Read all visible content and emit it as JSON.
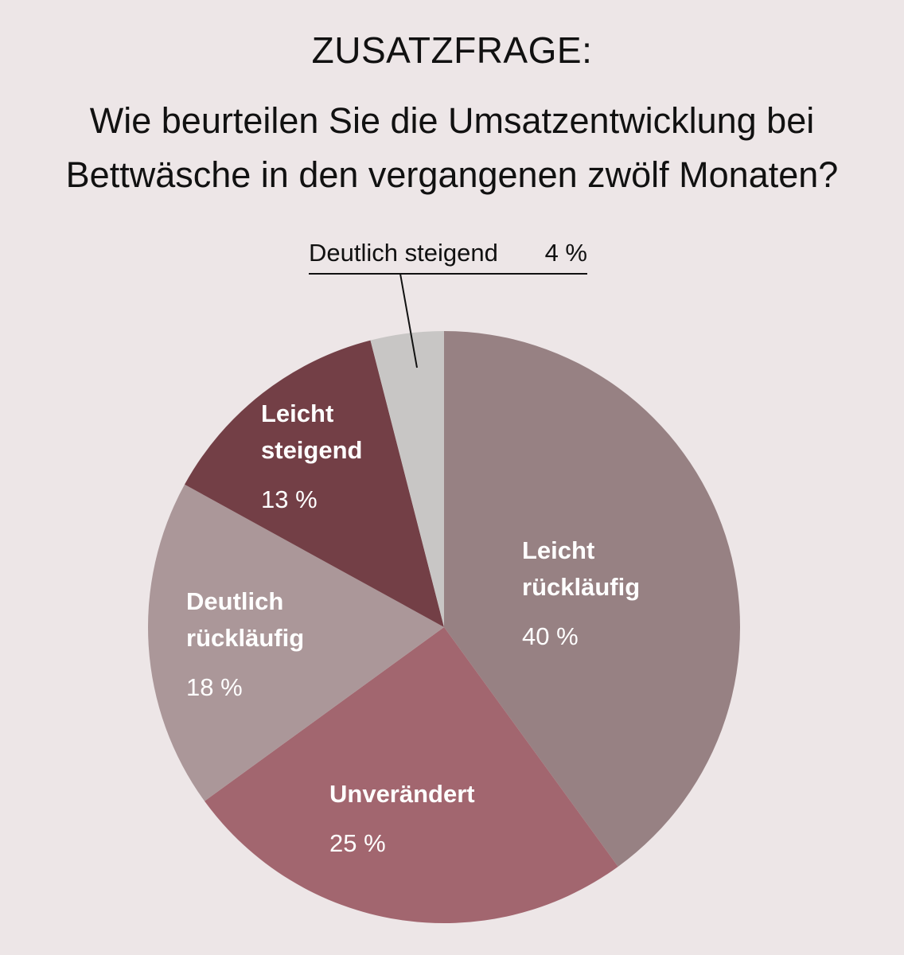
{
  "header": {
    "kicker": "ZUSATZFRAGE:",
    "question_line1": "Wie beurteilen Sie die Umsatzentwicklung bei",
    "question_line2": "Bettwäsche in den vergangenen zwölf Monaten?"
  },
  "chart_data": {
    "type": "pie",
    "title": "ZUSATZFRAGE: Wie beurteilen Sie die Umsatzentwicklung bei Bettwäsche in den vergangenen zwölf Monaten?",
    "unit": "%",
    "start": "top",
    "direction": "clockwise",
    "slices": [
      {
        "name_lines": [
          "Leicht",
          "rückläufig"
        ],
        "value": 40,
        "value_label": "40 %",
        "color": "#978183",
        "label_inside": true
      },
      {
        "name_lines": [
          "Unverändert"
        ],
        "value": 25,
        "value_label": "25 %",
        "color": "#a2666f",
        "label_inside": true
      },
      {
        "name_lines": [
          "Deutlich",
          "rückläufig"
        ],
        "value": 18,
        "value_label": "18 %",
        "color": "#ab9799",
        "label_inside": true
      },
      {
        "name_lines": [
          "Leicht",
          "steigend"
        ],
        "value": 13,
        "value_label": "13 %",
        "color": "#733f46",
        "label_inside": true
      },
      {
        "name_lines": [
          "Deutlich steigend"
        ],
        "value": 4,
        "value_label": "4 %",
        "color": "#c8c6c5",
        "label_inside": false
      }
    ]
  }
}
